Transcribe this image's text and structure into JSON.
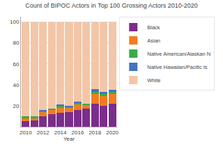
{
  "chart_data": {
    "type": "bar",
    "stacked": true,
    "title": "Count of BIPOC Actors in Top 100 Grossing Actors 2010-2020",
    "xlabel": "Year",
    "x": [
      2010,
      2011,
      2012,
      2013,
      2014,
      2015,
      2016,
      2017,
      2018,
      2019,
      2020
    ],
    "series": [
      {
        "name": "Black",
        "color": "#7b2d8b",
        "values": [
          5,
          6,
          10,
          12,
          13,
          14,
          16,
          17,
          22,
          20,
          22
        ]
      },
      {
        "name": "Asian",
        "color": "#f47b20",
        "values": [
          3,
          2,
          4,
          4,
          5,
          4,
          5,
          4,
          9,
          9,
          9
        ]
      },
      {
        "name": "Native American/Alaskan N",
        "color": "#3daa4a",
        "values": [
          2,
          2,
          1,
          1,
          2,
          1,
          2,
          1,
          2,
          2,
          2
        ]
      },
      {
        "name": "Native Hawaiian/Pacific Is",
        "color": "#4472c4",
        "values": [
          0,
          0,
          1,
          0,
          1,
          1,
          1,
          0,
          3,
          2,
          2
        ]
      },
      {
        "name": "White",
        "color": "#f4c6a8",
        "values": [
          90,
          90,
          84,
          83,
          79,
          80,
          76,
          78,
          64,
          67,
          65
        ]
      }
    ],
    "xlim": [
      2009.45,
      2020.55
    ],
    "xticks": [
      2010,
      2012,
      2014,
      2016,
      2018,
      2020
    ],
    "ylim": [
      0,
      105
    ],
    "yticks": [
      20,
      40,
      60,
      80,
      100
    ],
    "grid": true,
    "legend": "upper right"
  }
}
